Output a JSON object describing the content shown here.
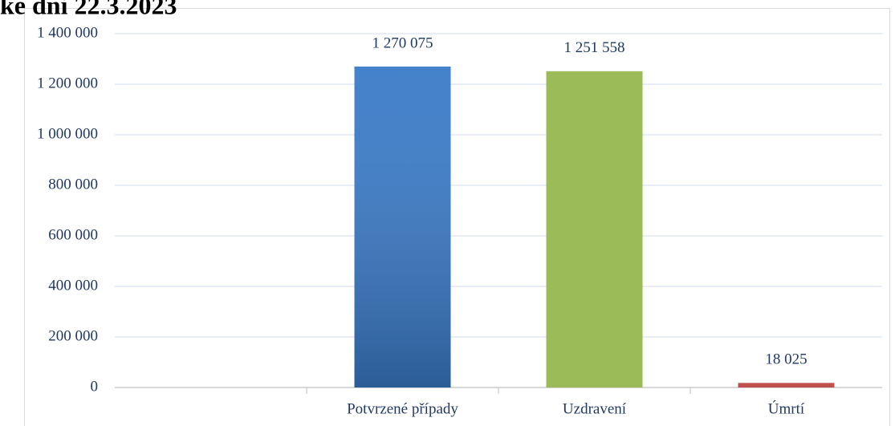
{
  "chart_data": {
    "type": "bar",
    "title": "ke dni 22.3.2023",
    "categories": [
      null,
      "Potvrzené případy",
      "Uzdravení",
      "Úmrtí"
    ],
    "values": [
      null,
      1270075,
      1251558,
      18025
    ],
    "value_labels": [
      null,
      "1 270 075",
      "1 251 558",
      "18 025"
    ],
    "colors": [
      null,
      "#3a7bc8",
      "#9bbb59",
      "#c0504d"
    ],
    "ylim": [
      0,
      1400000
    ],
    "yticks": [
      0,
      {
        "value": 200000,
        "label": "200 000"
      },
      {
        "value": 400000,
        "label": "400 000"
      },
      {
        "value": 600000,
        "label": "600 000"
      },
      {
        "value": 800000,
        "label": "800 000"
      },
      {
        "value": 1000000,
        "label": "1 000 000"
      },
      {
        "value": 1200000,
        "label": "1 200 000"
      },
      {
        "value": 1400000,
        "label": "1 400 000"
      }
    ],
    "grid": true
  }
}
